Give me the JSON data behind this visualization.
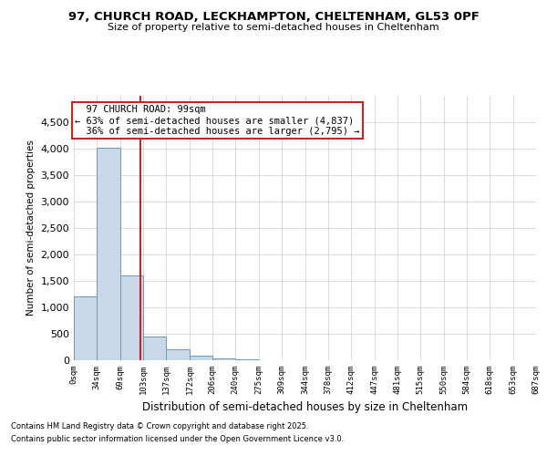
{
  "title1": "97, CHURCH ROAD, LECKHAMPTON, CHELTENHAM, GL53 0PF",
  "title2": "Size of property relative to semi-detached houses in Cheltenham",
  "xlabel": "Distribution of semi-detached houses by size in Cheltenham",
  "ylabel": "Number of semi-detached properties",
  "footnote1": "Contains HM Land Registry data © Crown copyright and database right 2025.",
  "footnote2": "Contains public sector information licensed under the Open Government Licence v3.0.",
  "property_size": 99,
  "property_label": "97 CHURCH ROAD: 99sqm",
  "pct_smaller": 63,
  "count_smaller": 4837,
  "pct_larger": 36,
  "count_larger": 2795,
  "bin_edges": [
    0,
    34,
    69,
    103,
    137,
    172,
    206,
    240,
    275,
    309,
    344,
    378,
    412,
    447,
    481,
    515,
    550,
    584,
    618,
    653,
    687
  ],
  "bin_labels": [
    "0sqm",
    "34sqm",
    "69sqm",
    "103sqm",
    "137sqm",
    "172sqm",
    "206sqm",
    "240sqm",
    "275sqm",
    "309sqm",
    "344sqm",
    "378sqm",
    "412sqm",
    "447sqm",
    "481sqm",
    "515sqm",
    "550sqm",
    "584sqm",
    "618sqm",
    "653sqm",
    "687sqm"
  ],
  "bar_heights": [
    1200,
    4020,
    1600,
    450,
    200,
    80,
    30,
    12,
    5,
    2,
    1,
    0,
    0,
    0,
    0,
    0,
    0,
    0,
    0,
    0
  ],
  "bar_color": "#c8d8e8",
  "bar_edge_color": "#6699bb",
  "line_color": "#cc2222",
  "annotation_box_color": "#cc2222",
  "ylim": [
    0,
    5000
  ],
  "yticks": [
    0,
    500,
    1000,
    1500,
    2000,
    2500,
    3000,
    3500,
    4000,
    4500
  ],
  "background_color": "#ffffff",
  "grid_color": "#cccccc"
}
